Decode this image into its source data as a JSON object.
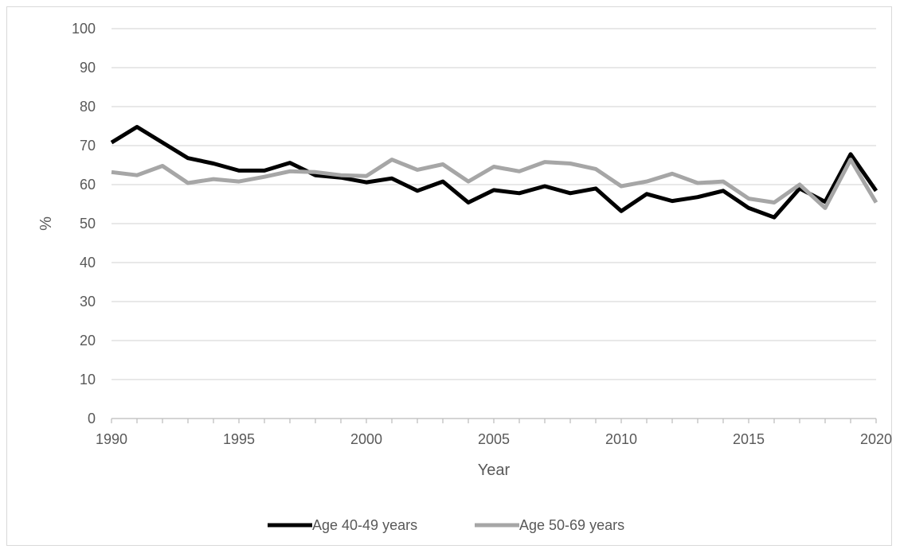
{
  "chart_data": {
    "type": "line",
    "title": "",
    "xlabel": "Year",
    "ylabel": "%",
    "xlim": [
      1990,
      2020
    ],
    "ylim": [
      0,
      100
    ],
    "x_ticks": [
      1990,
      1995,
      2000,
      2005,
      2010,
      2015,
      2020
    ],
    "y_ticks": [
      0,
      10,
      20,
      30,
      40,
      50,
      60,
      70,
      80,
      90,
      100
    ],
    "grid": "horizontal",
    "legend_position": "bottom",
    "x": [
      1990,
      1991,
      1992,
      1993,
      1994,
      1995,
      1996,
      1997,
      1998,
      1999,
      2000,
      2001,
      2002,
      2003,
      2004,
      2005,
      2006,
      2007,
      2008,
      2009,
      2010,
      2011,
      2012,
      2013,
      2014,
      2015,
      2016,
      2017,
      2018,
      2019,
      2020
    ],
    "series": [
      {
        "name": "Age 40-49 years",
        "color": "#000000",
        "values": [
          70.8,
          74.8,
          70.8,
          66.8,
          65.4,
          63.6,
          63.6,
          65.6,
          62.4,
          61.8,
          60.6,
          61.6,
          58.4,
          60.8,
          55.4,
          58.6,
          57.8,
          59.6,
          57.8,
          59.0,
          53.2,
          57.6,
          55.8,
          56.8,
          58.4,
          54.0,
          51.6,
          59.0,
          55.6,
          67.8,
          58.4
        ]
      },
      {
        "name": "Age 50-69 years",
        "color": "#a6a6a6",
        "values": [
          63.2,
          62.4,
          64.8,
          60.4,
          61.4,
          60.8,
          62.0,
          63.4,
          63.2,
          62.4,
          62.2,
          66.4,
          63.8,
          65.2,
          60.8,
          64.6,
          63.4,
          65.8,
          65.4,
          64.0,
          59.6,
          60.8,
          62.8,
          60.4,
          60.8,
          56.4,
          55.4,
          60.0,
          54.0,
          66.4,
          55.4
        ]
      }
    ]
  }
}
